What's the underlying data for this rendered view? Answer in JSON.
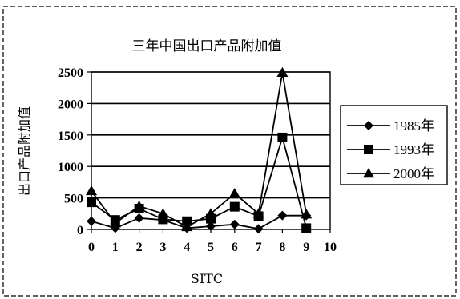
{
  "chart_data": {
    "type": "line",
    "title": "三年中国出口产品附加值",
    "xlabel": "SITC",
    "ylabel": "出口产品附加值",
    "xlim": [
      0,
      10
    ],
    "ylim": [
      0,
      2500
    ],
    "x_ticks": [
      0,
      1,
      2,
      3,
      4,
      5,
      6,
      7,
      8,
      9,
      10
    ],
    "y_ticks": [
      0,
      500,
      1000,
      1500,
      2000,
      2500
    ],
    "grid": true,
    "legend_position": "right",
    "x": [
      0,
      1,
      2,
      3,
      4,
      5,
      6,
      7,
      8,
      9
    ],
    "series": [
      {
        "name": "1985年",
        "marker": "diamond",
        "values": [
          130,
          20,
          180,
          150,
          20,
          50,
          80,
          10,
          220,
          220
        ]
      },
      {
        "name": "1993年",
        "marker": "square",
        "values": [
          430,
          150,
          330,
          160,
          130,
          170,
          360,
          210,
          1460,
          20
        ]
      },
      {
        "name": "2000年",
        "marker": "triangle",
        "values": [
          610,
          100,
          370,
          250,
          40,
          250,
          570,
          250,
          2490,
          240
        ]
      }
    ]
  },
  "colors": {
    "line": "#000000",
    "background": "#ffffff"
  }
}
